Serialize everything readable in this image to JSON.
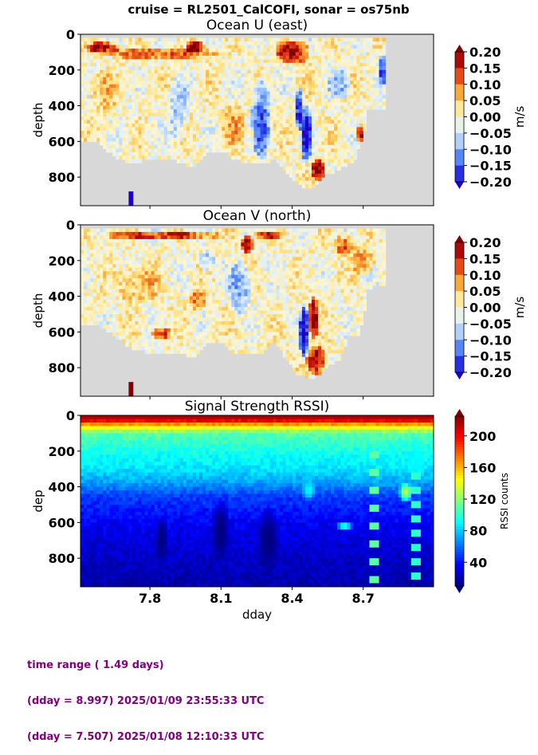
{
  "suptitle": "cruise = RL2501_CalCOFI,  sonar = os75nb",
  "footer": {
    "line1": "time range ( 1.49 days)",
    "line2": "(dday = 8.997) 2025/01/09 23:55:33 UTC",
    "line3": "(dday = 7.507) 2025/01/08 12:10:33 UTC"
  },
  "colors": {
    "nodata": "#d8d8d8",
    "diverging": [
      "#2000c8",
      "#2a4cf0",
      "#5c8ef6",
      "#a8ccfb",
      "#dceefd",
      "#fff6cc",
      "#ffdf7d",
      "#f7a131",
      "#e8541a",
      "#c8100e",
      "#800000"
    ],
    "jet": [
      "#00007f",
      "#0000ff",
      "#007fff",
      "#00ffff",
      "#7fff7f",
      "#ffff00",
      "#ff7f00",
      "#ff0000",
      "#7f0000"
    ]
  },
  "chart_data": [
    {
      "type": "heatmap",
      "title": "Ocean U (east)",
      "xlabel": "",
      "ylabel": "depth",
      "xlim": [
        7.507,
        8.997
      ],
      "ylim": [
        960,
        0
      ],
      "yticks": [
        0,
        200,
        400,
        600,
        800
      ],
      "yticklabels": [
        "0",
        "200",
        "400",
        "600",
        "800"
      ],
      "xticks": [
        7.8,
        8.1,
        8.4,
        8.7
      ],
      "colorbar": {
        "label": "m/s",
        "ticks": [
          0.2,
          0.15,
          0.1,
          0.05,
          0.0,
          -0.05,
          -0.1,
          -0.15,
          -0.2
        ],
        "ticklabels": [
          "0.20",
          "0.15",
          "0.10",
          "0.05",
          "0.00",
          "−0.05",
          "−0.10",
          "−0.15",
          "−0.20"
        ],
        "range": [
          -0.2,
          0.2
        ],
        "extend": "both"
      },
      "data_extent": [
        7.507,
        8.8
      ],
      "bottom_depth": [
        [
          7.507,
          600
        ],
        [
          7.58,
          590
        ],
        [
          7.65,
          690
        ],
        [
          7.72,
          720
        ],
        [
          7.8,
          700
        ],
        [
          7.88,
          700
        ],
        [
          7.96,
          730
        ],
        [
          8.0,
          730
        ],
        [
          8.05,
          650
        ],
        [
          8.1,
          650
        ],
        [
          8.15,
          690
        ],
        [
          8.2,
          720
        ],
        [
          8.28,
          720
        ],
        [
          8.32,
          700
        ],
        [
          8.36,
          740
        ],
        [
          8.42,
          830
        ],
        [
          8.46,
          860
        ],
        [
          8.5,
          850
        ],
        [
          8.55,
          780
        ],
        [
          8.6,
          760
        ],
        [
          8.64,
          720
        ],
        [
          8.66,
          720
        ],
        [
          8.68,
          640
        ],
        [
          8.7,
          580
        ],
        [
          8.72,
          420
        ],
        [
          8.75,
          420
        ],
        [
          8.8,
          420
        ]
      ],
      "features": [
        {
          "x": 7.85,
          "y": 110,
          "rx": 0.26,
          "ry": 35,
          "v": 0.12
        },
        {
          "x": 7.6,
          "y": 75,
          "rx": 0.08,
          "ry": 30,
          "v": 0.18
        },
        {
          "x": 8.4,
          "y": 100,
          "rx": 0.07,
          "ry": 70,
          "v": 0.18
        },
        {
          "x": 7.6,
          "y": 320,
          "rx": 0.06,
          "ry": 130,
          "v": 0.06
        },
        {
          "x": 7.92,
          "y": 420,
          "rx": 0.05,
          "ry": 180,
          "v": -0.07
        },
        {
          "x": 8.15,
          "y": 500,
          "rx": 0.05,
          "ry": 150,
          "v": 0.06
        },
        {
          "x": 8.27,
          "y": 470,
          "rx": 0.04,
          "ry": 240,
          "v": -0.14
        },
        {
          "x": 8.46,
          "y": 560,
          "rx": 0.025,
          "ry": 170,
          "v": -0.2
        },
        {
          "x": 8.43,
          "y": 420,
          "rx": 0.015,
          "ry": 120,
          "v": -0.2
        },
        {
          "x": 8.51,
          "y": 760,
          "rx": 0.03,
          "ry": 60,
          "v": 0.2
        },
        {
          "x": 8.69,
          "y": 560,
          "rx": 0.015,
          "ry": 60,
          "v": 0.2
        },
        {
          "x": 8.78,
          "y": 200,
          "rx": 0.02,
          "ry": 90,
          "v": -0.15
        },
        {
          "x": 7.99,
          "y": 70,
          "rx": 0.04,
          "ry": 30,
          "v": 0.2
        },
        {
          "x": 8.6,
          "y": 280,
          "rx": 0.05,
          "ry": 90,
          "v": -0.09
        }
      ],
      "extra_patch": {
        "x": 7.72,
        "y": 920,
        "rx": 0.01,
        "ry": 40,
        "v": -0.2
      }
    },
    {
      "type": "heatmap",
      "title": "Ocean V (north)",
      "xlabel": "",
      "ylabel": "depth",
      "xlim": [
        7.507,
        8.997
      ],
      "ylim": [
        960,
        0
      ],
      "yticks": [
        0,
        200,
        400,
        600,
        800
      ],
      "yticklabels": [
        "0",
        "200",
        "400",
        "600",
        "800"
      ],
      "xticks": [
        7.8,
        8.1,
        8.4,
        8.7
      ],
      "colorbar": {
        "label": "m/s",
        "ticks": [
          0.2,
          0.15,
          0.1,
          0.05,
          0.0,
          -0.05,
          -0.1,
          -0.15,
          -0.2
        ],
        "ticklabels": [
          "0.20",
          "0.15",
          "0.10",
          "0.05",
          "0.00",
          "−0.05",
          "−0.10",
          "−0.15",
          "−0.20"
        ],
        "range": [
          -0.2,
          0.2
        ],
        "extend": "both"
      },
      "data_extent": [
        7.507,
        8.8
      ],
      "bottom_depth": [
        [
          7.507,
          560
        ],
        [
          7.58,
          560
        ],
        [
          7.65,
          620
        ],
        [
          7.72,
          690
        ],
        [
          7.8,
          720
        ],
        [
          7.88,
          720
        ],
        [
          7.95,
          730
        ],
        [
          8.0,
          730
        ],
        [
          8.05,
          650
        ],
        [
          8.1,
          650
        ],
        [
          8.15,
          720
        ],
        [
          8.2,
          720
        ],
        [
          8.28,
          720
        ],
        [
          8.32,
          650
        ],
        [
          8.36,
          720
        ],
        [
          8.42,
          840
        ],
        [
          8.46,
          850
        ],
        [
          8.5,
          850
        ],
        [
          8.55,
          790
        ],
        [
          8.6,
          760
        ],
        [
          8.64,
          620
        ],
        [
          8.66,
          630
        ],
        [
          8.68,
          620
        ],
        [
          8.7,
          520
        ],
        [
          8.72,
          380
        ],
        [
          8.75,
          350
        ],
        [
          8.8,
          340
        ]
      ],
      "features": [
        {
          "x": 7.85,
          "y": 60,
          "rx": 0.26,
          "ry": 25,
          "v": 0.15
        },
        {
          "x": 7.75,
          "y": 330,
          "rx": 0.1,
          "ry": 120,
          "v": 0.06
        },
        {
          "x": 7.85,
          "y": 610,
          "rx": 0.04,
          "ry": 40,
          "v": 0.15
        },
        {
          "x": 8.21,
          "y": 110,
          "rx": 0.03,
          "ry": 50,
          "v": 0.2
        },
        {
          "x": 8.04,
          "y": 200,
          "rx": 0.04,
          "ry": 60,
          "v": -0.08
        },
        {
          "x": 8.18,
          "y": 350,
          "rx": 0.05,
          "ry": 150,
          "v": -0.1
        },
        {
          "x": 8.45,
          "y": 600,
          "rx": 0.02,
          "ry": 160,
          "v": -0.2
        },
        {
          "x": 8.5,
          "y": 760,
          "rx": 0.04,
          "ry": 80,
          "v": 0.2
        },
        {
          "x": 8.49,
          "y": 520,
          "rx": 0.02,
          "ry": 120,
          "v": 0.2
        },
        {
          "x": 8.62,
          "y": 120,
          "rx": 0.05,
          "ry": 60,
          "v": 0.12
        },
        {
          "x": 8.7,
          "y": 200,
          "rx": 0.05,
          "ry": 80,
          "v": 0.08
        },
        {
          "x": 8.3,
          "y": 60,
          "rx": 0.06,
          "ry": 25,
          "v": 0.15
        },
        {
          "x": 8.0,
          "y": 420,
          "rx": 0.04,
          "ry": 60,
          "v": 0.1
        }
      ],
      "extra_patch": {
        "x": 7.72,
        "y": 920,
        "rx": 0.01,
        "ry": 40,
        "v": 0.2
      }
    },
    {
      "type": "heatmap",
      "title": "Signal Strength RSSI)",
      "xlabel": "dday",
      "ylabel": "dep",
      "xlim": [
        7.507,
        8.997
      ],
      "ylim": [
        960,
        0
      ],
      "yticks": [
        0,
        200,
        400,
        600,
        800
      ],
      "yticklabels": [
        "0",
        "200",
        "400",
        "600",
        "800"
      ],
      "xticks": [
        7.8,
        8.1,
        8.4,
        8.7
      ],
      "xticklabels": [
        "7.8",
        "8.1",
        "8.4",
        "8.7"
      ],
      "colorbar": {
        "label": "RSSI counts",
        "ticks": [
          200,
          160,
          120,
          80,
          40
        ],
        "ticklabels": [
          "200",
          "160",
          "120",
          "80",
          "40"
        ],
        "range": [
          10,
          225
        ],
        "extend": "both"
      },
      "depth_profile": [
        [
          30,
          200
        ],
        [
          60,
          150
        ],
        [
          100,
          110
        ],
        [
          200,
          95
        ],
        [
          300,
          85
        ],
        [
          380,
          70
        ],
        [
          450,
          50
        ],
        [
          600,
          35
        ],
        [
          800,
          25
        ],
        [
          960,
          20
        ]
      ],
      "features": [
        {
          "x": 8.47,
          "y": 420,
          "rx": 0.03,
          "ry": 60,
          "v": 90
        },
        {
          "x": 8.62,
          "y": 620,
          "rx": 0.04,
          "ry": 20,
          "v": 110
        },
        {
          "x": 8.88,
          "y": 430,
          "rx": 0.03,
          "ry": 60,
          "v": 130
        },
        {
          "x": 8.93,
          "y": 250,
          "rx": 0.04,
          "ry": 120,
          "v": 90
        },
        {
          "x": 7.85,
          "y": 700,
          "rx": 0.03,
          "ry": 150,
          "v": 10
        },
        {
          "x": 8.1,
          "y": 650,
          "rx": 0.04,
          "ry": 200,
          "v": 10
        },
        {
          "x": 8.3,
          "y": 700,
          "rx": 0.05,
          "ry": 200,
          "v": 10
        }
      ]
    }
  ]
}
